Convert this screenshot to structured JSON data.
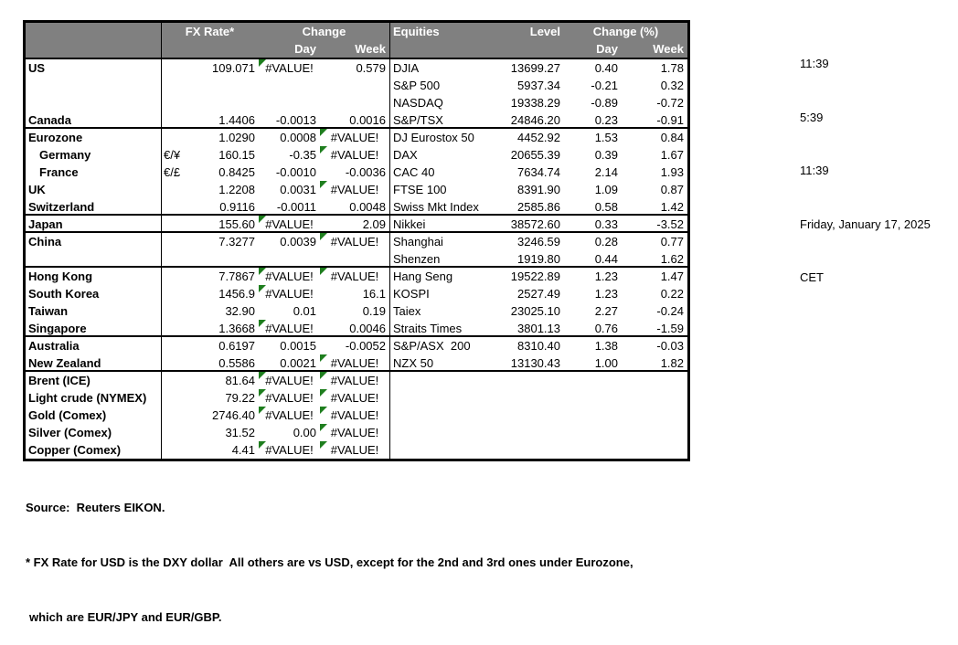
{
  "error_value": "#VALUE!",
  "colors": {
    "header_bg": "#808080",
    "header_text": "#ffffff",
    "border": "#000000",
    "error_triangle": "#1e7e1e"
  },
  "table": {
    "fx_header": {
      "rate": "FX Rate*",
      "change": "Change",
      "day": "Day",
      "week": "Week"
    },
    "eq_header": {
      "title": "Equities",
      "level": "Level",
      "change": "Change (%)",
      "day": "Day",
      "week": "Week"
    },
    "rows": [
      {
        "name": "US",
        "indent": false,
        "pair": "",
        "fx": "109.071",
        "day": "#VALUE!",
        "week": "0.579",
        "eq": "DJIA",
        "level": "13699.27",
        "eqday": "0.40",
        "eqweek": "1.78",
        "sec": false
      },
      {
        "name": "",
        "indent": false,
        "pair": "",
        "fx": "",
        "day": "",
        "week": "",
        "eq": "S&P 500",
        "level": "5937.34",
        "eqday": "-0.21",
        "eqweek": "0.32",
        "sec": false
      },
      {
        "name": "",
        "indent": false,
        "pair": "",
        "fx": "",
        "day": "",
        "week": "",
        "eq": "NASDAQ",
        "level": "19338.29",
        "eqday": "-0.89",
        "eqweek": "-0.72",
        "sec": false
      },
      {
        "name": "Canada",
        "indent": false,
        "pair": "",
        "fx": "1.4406",
        "day": "-0.0013",
        "week": "0.0016",
        "eq": "S&P/TSX",
        "level": "24846.20",
        "eqday": "0.23",
        "eqweek": "-0.91",
        "sec": true
      },
      {
        "name": "Eurozone",
        "indent": false,
        "pair": "",
        "fx": "1.0290",
        "day": "0.0008",
        "week": "#VALUE!",
        "eq": "DJ Eurostox 50",
        "level": "4452.92",
        "eqday": "1.53",
        "eqweek": "0.84",
        "sec": false
      },
      {
        "name": "Germany",
        "indent": true,
        "pair": "€/¥",
        "fx": "160.15",
        "day": "-0.35",
        "week": "#VALUE!",
        "eq": "DAX",
        "level": "20655.39",
        "eqday": "0.39",
        "eqweek": "1.67",
        "sec": false
      },
      {
        "name": "France",
        "indent": true,
        "pair": "€/£",
        "fx": "0.8425",
        "day": "-0.0010",
        "week": "-0.0036",
        "eq": "CAC 40",
        "level": "7634.74",
        "eqday": "2.14",
        "eqweek": "1.93",
        "sec": false
      },
      {
        "name": "UK",
        "indent": false,
        "pair": "",
        "fx": "1.2208",
        "day": "0.0031",
        "week": "#VALUE!",
        "eq": "FTSE 100",
        "level": "8391.90",
        "eqday": "1.09",
        "eqweek": "0.87",
        "sec": false
      },
      {
        "name": "Switzerland",
        "indent": false,
        "pair": "",
        "fx": "0.9116",
        "day": "-0.0011",
        "week": "0.0048",
        "eq": "Swiss Mkt Index",
        "level": "2585.86",
        "eqday": "0.58",
        "eqweek": "1.42",
        "sec": true
      },
      {
        "name": "Japan",
        "indent": false,
        "pair": "",
        "fx": "155.60",
        "day": "#VALUE!",
        "week": "2.09",
        "eq": "Nikkei",
        "level": "38572.60",
        "eqday": "0.33",
        "eqweek": "-3.52",
        "sec": true
      },
      {
        "name": "China",
        "indent": false,
        "pair": "",
        "fx": "7.3277",
        "day": "0.0039",
        "week": "#VALUE!",
        "eq": "Shanghai",
        "level": "3246.59",
        "eqday": "0.28",
        "eqweek": "0.77",
        "sec": false
      },
      {
        "name": "",
        "indent": false,
        "pair": "",
        "fx": "",
        "day": "",
        "week": "",
        "eq": "Shenzen",
        "level": "1919.80",
        "eqday": "0.44",
        "eqweek": "1.62",
        "sec": true
      },
      {
        "name": "Hong Kong",
        "indent": false,
        "pair": "",
        "fx": "7.7867",
        "day": "#VALUE!",
        "week": "#VALUE!",
        "eq": "Hang Seng",
        "level": "19522.89",
        "eqday": "1.23",
        "eqweek": "1.47",
        "sec": false
      },
      {
        "name": "South Korea",
        "indent": false,
        "pair": "",
        "fx": "1456.9",
        "day": "#VALUE!",
        "week": "16.1",
        "eq": "KOSPI",
        "level": "2527.49",
        "eqday": "1.23",
        "eqweek": "0.22",
        "sec": false
      },
      {
        "name": "Taiwan",
        "indent": false,
        "pair": "",
        "fx": "32.90",
        "day": "0.01",
        "week": "0.19",
        "eq": "Taiex",
        "level": "23025.10",
        "eqday": "2.27",
        "eqweek": "-0.24",
        "sec": false
      },
      {
        "name": "Singapore",
        "indent": false,
        "pair": "",
        "fx": "1.3668",
        "day": "#VALUE!",
        "week": "0.0046",
        "eq": "Straits Times",
        "level": "3801.13",
        "eqday": "0.76",
        "eqweek": "-1.59",
        "sec": true
      },
      {
        "name": "Australia",
        "indent": false,
        "pair": "",
        "fx": "0.6197",
        "day": "0.0015",
        "week": "-0.0052",
        "eq": "S&P/ASX  200",
        "level": "8310.40",
        "eqday": "1.38",
        "eqweek": "-0.03",
        "sec": false
      },
      {
        "name": "New Zealand",
        "indent": false,
        "pair": "",
        "fx": "0.5586",
        "day": "0.0021",
        "week": "#VALUE!",
        "eq": "NZX 50",
        "level": "13130.43",
        "eqday": "1.00",
        "eqweek": "1.82",
        "sec": true
      },
      {
        "name": "Brent (ICE)",
        "indent": false,
        "pair": "",
        "fx": "81.64",
        "day": "#VALUE!",
        "week": "#VALUE!",
        "eq": "",
        "level": "",
        "eqday": "",
        "eqweek": "",
        "sec": false
      },
      {
        "name": "Light crude (NYMEX)",
        "indent": false,
        "pair": "",
        "fx": "79.22",
        "day": "#VALUE!",
        "week": "#VALUE!",
        "eq": "",
        "level": "",
        "eqday": "",
        "eqweek": "",
        "sec": false
      },
      {
        "name": "Gold (Comex)",
        "indent": false,
        "pair": "",
        "fx": "2746.40",
        "day": "#VALUE!",
        "week": "#VALUE!",
        "eq": "",
        "level": "",
        "eqday": "",
        "eqweek": "",
        "sec": false
      },
      {
        "name": "Silver (Comex)",
        "indent": false,
        "pair": "",
        "fx": "31.52",
        "day": "0.00",
        "week": "#VALUE!",
        "eq": "",
        "level": "",
        "eqday": "",
        "eqweek": "",
        "sec": false
      },
      {
        "name": "Copper (Comex)",
        "indent": false,
        "pair": "",
        "fx": "4.41",
        "day": "#VALUE!",
        "week": "#VALUE!",
        "eq": "",
        "level": "",
        "eqday": "",
        "eqweek": "",
        "sec": false
      }
    ]
  },
  "timestamps": [
    "11:39",
    "5:39",
    "11:39",
    "Friday, January 17, 2025",
    "CET"
  ],
  "footer": {
    "source": "Source:  Reuters EIKON.",
    "note1": "* FX Rate for USD is the DXY dollar  All others are vs USD, except for the 2nd and 3rd ones under Eurozone,",
    "note2": "which are EUR/JPY and EUR/GBP."
  }
}
